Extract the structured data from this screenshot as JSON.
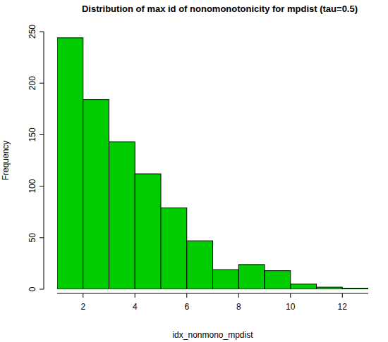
{
  "chart_data": {
    "type": "histogram",
    "title": "Distribution of max id of nonomonotonicity for mpdist (tau=0.5)",
    "x_label": "idx_nonmono_mpdist",
    "y_label": "Frequency",
    "bins": [
      1,
      2,
      3,
      4,
      5,
      6,
      7,
      8,
      9,
      10,
      11,
      12,
      13
    ],
    "values": [
      244,
      184,
      143,
      112,
      79,
      47,
      19,
      24,
      18,
      5,
      2,
      1
    ],
    "color": "#00cc00",
    "xlim": [
      1,
      13
    ],
    "xticks": [
      2,
      4,
      6,
      8,
      10,
      12
    ],
    "ylim": [
      0,
      250
    ],
    "yticks": [
      0,
      50,
      100,
      150,
      200,
      250
    ],
    "grid": false
  }
}
